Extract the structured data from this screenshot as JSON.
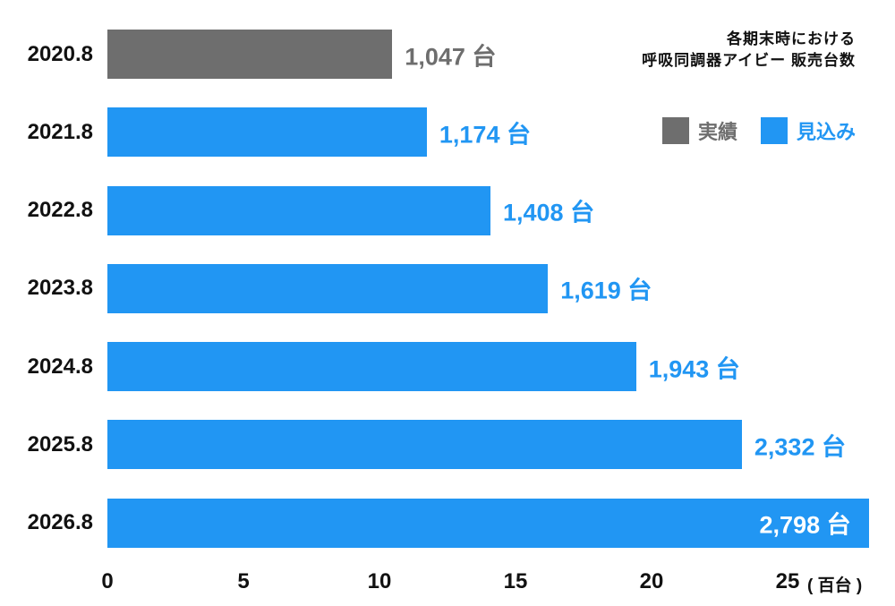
{
  "title": {
    "line1": "各期末時における",
    "line2": "呼吸同調器アイビー 販売台数"
  },
  "legend": {
    "actual_label": "実績",
    "forecast_label": "見込み"
  },
  "colors": {
    "actual": "#6e6e6e",
    "forecast": "#2196f3",
    "text": "#111111",
    "value_inside": "#ffffff"
  },
  "chart_data": {
    "type": "bar",
    "orientation": "horizontal",
    "title": "各期末時における 呼吸同調器アイビー 販売台数",
    "categories": [
      "2020.8",
      "2021.8",
      "2022.8",
      "2023.8",
      "2024.8",
      "2025.8",
      "2026.8"
    ],
    "values": [
      1047,
      1174,
      1408,
      1619,
      1943,
      2332,
      2798
    ],
    "value_labels": [
      "1,047 台",
      "1,174 台",
      "1,408 台",
      "1,619 台",
      "1,943 台",
      "2,332 台",
      "2,798 台"
    ],
    "series": [
      "actual",
      "forecast",
      "forecast",
      "forecast",
      "forecast",
      "forecast",
      "forecast"
    ],
    "legend_entries": [
      {
        "name": "実績",
        "type": "actual"
      },
      {
        "name": "見込み",
        "type": "forecast"
      }
    ],
    "x_ticks": [
      0,
      5,
      10,
      15,
      20,
      25
    ],
    "x_tick_labels": [
      "0",
      "5",
      "10",
      "15",
      "20",
      "25"
    ],
    "x_axis_unit": "( 百台 )",
    "xlim": [
      0,
      28
    ],
    "grid": false,
    "legend_position": "top-right"
  }
}
